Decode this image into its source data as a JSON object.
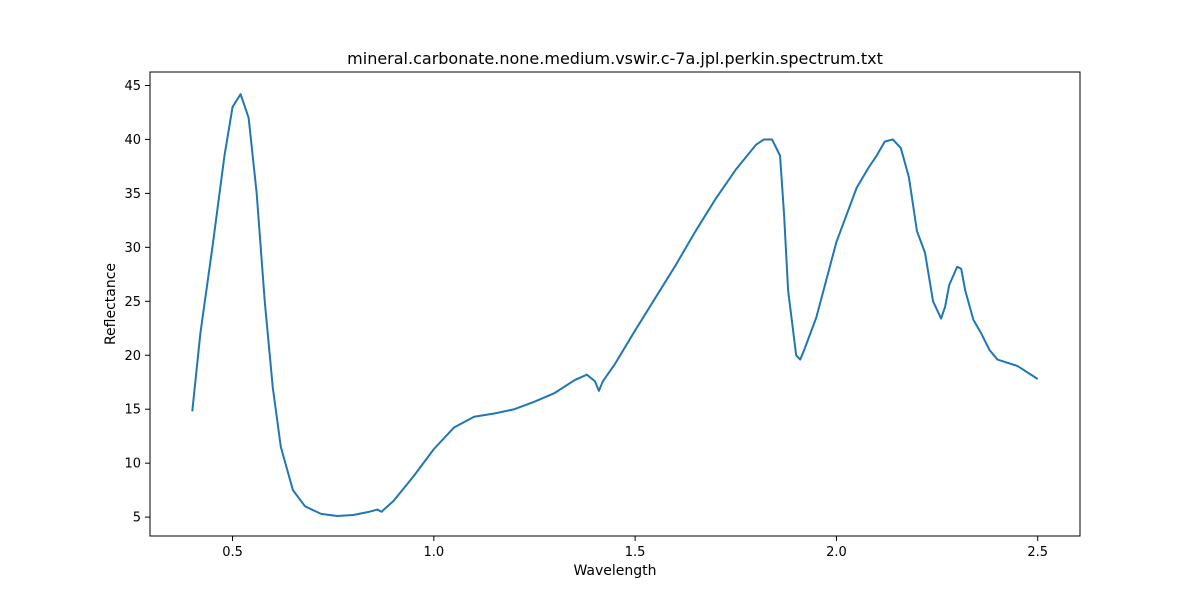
{
  "chart_data": {
    "type": "line",
    "title": "mineral.carbonate.none.medium.vswir.c-7a.jpl.perkin.spectrum.txt",
    "xlabel": "Wavelength",
    "ylabel": "Reflectance",
    "xlim": [
      0.295,
      2.605
    ],
    "ylim": [
      3.25,
      46.25
    ],
    "xticks": [
      0.5,
      1.0,
      1.5,
      2.0,
      2.5
    ],
    "xtick_labels": [
      "0.5",
      "1.0",
      "1.5",
      "2.0",
      "2.5"
    ],
    "yticks": [
      5,
      10,
      15,
      20,
      25,
      30,
      35,
      40,
      45
    ],
    "ytick_labels": [
      "5",
      "10",
      "15",
      "20",
      "25",
      "30",
      "35",
      "40",
      "45"
    ],
    "grid": false,
    "line_color": "#1f77b4",
    "series": [
      {
        "x": [
          0.4,
          0.42,
          0.45,
          0.48,
          0.5,
          0.52,
          0.54,
          0.56,
          0.58,
          0.6,
          0.62,
          0.65,
          0.68,
          0.72,
          0.76,
          0.8,
          0.84,
          0.86,
          0.87,
          0.9,
          0.95,
          1.0,
          1.05,
          1.1,
          1.15,
          1.2,
          1.25,
          1.3,
          1.35,
          1.38,
          1.4,
          1.41,
          1.42,
          1.45,
          1.5,
          1.55,
          1.6,
          1.65,
          1.7,
          1.75,
          1.8,
          1.82,
          1.84,
          1.86,
          1.87,
          1.88,
          1.9,
          1.91,
          1.92,
          1.95,
          2.0,
          2.05,
          2.08,
          2.1,
          2.12,
          2.14,
          2.16,
          2.18,
          2.2,
          2.22,
          2.24,
          2.26,
          2.27,
          2.28,
          2.3,
          2.31,
          2.32,
          2.34,
          2.36,
          2.38,
          2.4,
          2.45,
          2.5
        ],
        "y": [
          14.8,
          22.0,
          30.0,
          38.5,
          43.0,
          44.2,
          42.0,
          35.0,
          25.0,
          17.0,
          11.5,
          7.5,
          6.0,
          5.3,
          5.1,
          5.2,
          5.5,
          5.7,
          5.5,
          6.5,
          8.8,
          11.3,
          13.3,
          14.3,
          14.6,
          15.0,
          15.7,
          16.5,
          17.7,
          18.2,
          17.6,
          16.7,
          17.6,
          19.2,
          22.3,
          25.3,
          28.3,
          31.5,
          34.5,
          37.2,
          39.5,
          40.0,
          40.0,
          38.5,
          33.0,
          26.0,
          20.0,
          19.6,
          20.5,
          23.5,
          30.5,
          35.5,
          37.4,
          38.5,
          39.8,
          40.0,
          39.2,
          36.5,
          31.5,
          29.5,
          25.0,
          23.4,
          24.5,
          26.5,
          28.2,
          28.0,
          26.0,
          23.3,
          22.0,
          20.5,
          19.6,
          19.0,
          17.8
        ]
      }
    ]
  }
}
